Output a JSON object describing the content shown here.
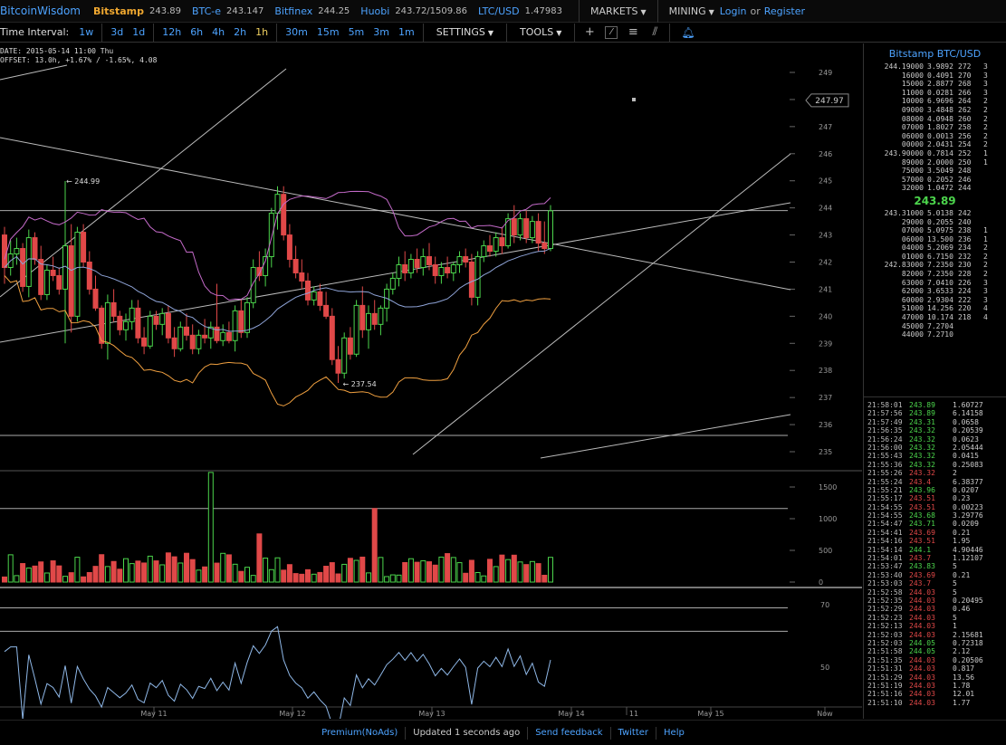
{
  "topbar": {
    "brand": "BitcoinWisdom",
    "exchanges": [
      {
        "name": "Bitstamp",
        "price": "243.89"
      },
      {
        "name": "BTC-e",
        "price": "243.147"
      },
      {
        "name": "Bitfinex",
        "price": "244.25"
      },
      {
        "name": "Huobi",
        "price": "243.72/1509.86"
      },
      {
        "name": "LTC/USD",
        "price": "1.47983"
      }
    ],
    "markets_label": "MARKETS",
    "mining_label": "MINING",
    "login_label": "Login",
    "or_label": "or",
    "register_label": "Register"
  },
  "toolbar": {
    "interval_label": "Time Interval:",
    "intervals": [
      "1w",
      "3d",
      "1d",
      "12h",
      "6h",
      "4h",
      "2h",
      "1h",
      "30m",
      "15m",
      "5m",
      "3m",
      "1m"
    ],
    "settings_label": "SETTINGS",
    "tools_label": "TOOLS"
  },
  "info": {
    "date_line": "DATE: 2015-05-14 11:00 Thu",
    "offset_line": "OFFSET: 13.0h, +1.67% / -1.65%, 4.08"
  },
  "chart_data": {
    "type": "candlestick",
    "price_ticks": [
      "249",
      "248",
      "247",
      "246",
      "245",
      "244",
      "243",
      "242",
      "241",
      "240",
      "239",
      "238",
      "237",
      "236",
      "235"
    ],
    "price_marker": "247.97",
    "high_label": "← 244.99",
    "low_label": "← 237.54",
    "volume_ticks": [
      "1500",
      "1000",
      "500",
      "0"
    ],
    "rsi_ticks": [
      "70",
      "50"
    ],
    "x_labels": [
      "May 11",
      "May 12",
      "May 13",
      "May 14",
      "11",
      "May 15",
      "Now"
    ],
    "candles": [
      [
        243.0,
        243.3,
        241.2,
        241.8
      ],
      [
        241.8,
        242.8,
        241.5,
        242.3
      ],
      [
        242.3,
        242.9,
        241.9,
        242.5
      ],
      [
        242.5,
        242.7,
        240.9,
        241.1
      ],
      [
        241.1,
        243.2,
        240.7,
        242.9
      ],
      [
        242.9,
        243.1,
        241.9,
        242.1
      ],
      [
        242.1,
        242.6,
        240.6,
        240.8
      ],
      [
        240.8,
        241.9,
        240.6,
        241.7
      ],
      [
        241.7,
        242.2,
        241.3,
        241.5
      ],
      [
        241.5,
        241.8,
        240.8,
        241.0
      ],
      [
        241.0,
        244.99,
        239.0,
        242.6
      ],
      [
        242.6,
        243.4,
        239.4,
        240.0
      ],
      [
        240.0,
        243.3,
        239.8,
        243.1
      ],
      [
        243.1,
        243.4,
        241.8,
        242.0
      ],
      [
        242.0,
        242.4,
        240.8,
        241.0
      ],
      [
        241.0,
        241.5,
        240.2,
        240.3
      ],
      [
        240.3,
        240.4,
        238.8,
        239.0
      ],
      [
        239.0,
        240.8,
        238.4,
        240.5
      ],
      [
        240.5,
        241.0,
        239.8,
        240.0
      ],
      [
        240.0,
        240.2,
        239.3,
        239.5
      ],
      [
        239.5,
        240.1,
        239.1,
        239.8
      ],
      [
        239.8,
        240.6,
        239.5,
        240.3
      ],
      [
        240.3,
        240.6,
        239.0,
        239.2
      ],
      [
        239.2,
        239.6,
        238.6,
        238.9
      ],
      [
        238.9,
        240.2,
        238.8,
        240.0
      ],
      [
        240.0,
        240.2,
        239.5,
        239.7
      ],
      [
        239.7,
        240.3,
        239.3,
        240.1
      ],
      [
        240.1,
        240.4,
        239.0,
        239.2
      ],
      [
        239.2,
        239.6,
        238.5,
        238.8
      ],
      [
        238.8,
        239.8,
        238.7,
        239.6
      ],
      [
        239.6,
        240.1,
        239.1,
        239.3
      ],
      [
        239.3,
        239.7,
        238.6,
        238.8
      ],
      [
        238.8,
        239.5,
        238.6,
        239.3
      ],
      [
        239.3,
        239.9,
        239.0,
        239.2
      ],
      [
        239.2,
        239.8,
        238.8,
        239.6
      ],
      [
        239.6,
        241.2,
        239.0,
        239.1
      ],
      [
        239.1,
        239.7,
        238.9,
        239.4
      ],
      [
        239.4,
        239.8,
        239.0,
        239.1
      ],
      [
        239.1,
        240.4,
        238.7,
        240.2
      ],
      [
        240.2,
        240.6,
        239.2,
        239.4
      ],
      [
        239.4,
        240.7,
        239.2,
        240.5
      ],
      [
        240.5,
        242.1,
        240.3,
        241.8
      ],
      [
        241.8,
        242.4,
        241.3,
        241.5
      ],
      [
        241.5,
        242.5,
        241.1,
        242.2
      ],
      [
        242.2,
        244.0,
        241.8,
        243.8
      ],
      [
        243.8,
        244.8,
        243.2,
        244.5
      ],
      [
        244.5,
        244.8,
        242.8,
        243.0
      ],
      [
        243.0,
        243.4,
        241.8,
        242.1
      ],
      [
        242.1,
        242.6,
        241.4,
        241.6
      ],
      [
        241.6,
        242.1,
        241.0,
        241.3
      ],
      [
        241.3,
        241.6,
        240.4,
        240.6
      ],
      [
        240.6,
        241.1,
        240.4,
        240.9
      ],
      [
        240.9,
        241.2,
        240.2,
        240.4
      ],
      [
        240.4,
        240.9,
        239.9,
        240.0
      ],
      [
        240.0,
        240.3,
        238.2,
        238.4
      ],
      [
        238.4,
        238.9,
        237.54,
        237.9
      ],
      [
        237.9,
        239.4,
        237.7,
        239.2
      ],
      [
        239.2,
        239.6,
        238.4,
        238.6
      ],
      [
        238.6,
        240.6,
        238.5,
        240.4
      ],
      [
        240.4,
        241.1,
        239.2,
        239.5
      ],
      [
        239.5,
        240.4,
        238.8,
        240.1
      ],
      [
        240.1,
        240.6,
        239.5,
        239.7
      ],
      [
        239.7,
        240.4,
        239.3,
        240.3
      ],
      [
        240.3,
        241.2,
        239.8,
        241.0
      ],
      [
        241.0,
        241.6,
        240.8,
        241.4
      ],
      [
        241.4,
        242.2,
        241.1,
        241.9
      ],
      [
        241.9,
        242.4,
        241.3,
        241.6
      ],
      [
        241.6,
        242.3,
        241.4,
        242.1
      ],
      [
        242.1,
        242.5,
        241.6,
        241.8
      ],
      [
        241.8,
        242.5,
        241.5,
        242.2
      ],
      [
        242.2,
        242.7,
        241.7,
        241.9
      ],
      [
        241.9,
        242.2,
        241.2,
        241.5
      ],
      [
        241.5,
        242.0,
        241.2,
        241.8
      ],
      [
        241.8,
        242.2,
        241.4,
        241.6
      ],
      [
        241.6,
        242.0,
        241.3,
        241.9
      ],
      [
        241.9,
        242.4,
        241.6,
        242.2
      ],
      [
        242.2,
        242.5,
        241.8,
        242.0
      ],
      [
        242.0,
        242.3,
        240.4,
        240.7
      ],
      [
        240.7,
        242.4,
        240.4,
        242.2
      ],
      [
        242.2,
        242.8,
        242.0,
        242.6
      ],
      [
        242.6,
        243.0,
        242.2,
        242.4
      ],
      [
        242.4,
        243.1,
        242.2,
        242.9
      ],
      [
        242.9,
        243.3,
        242.3,
        242.6
      ],
      [
        242.6,
        243.8,
        242.5,
        243.6
      ],
      [
        243.6,
        244.1,
        242.7,
        243.0
      ],
      [
        243.0,
        243.8,
        242.8,
        243.6
      ],
      [
        243.6,
        243.9,
        242.7,
        242.9
      ],
      [
        242.9,
        243.7,
        242.7,
        243.5
      ],
      [
        243.5,
        243.8,
        242.4,
        242.7
      ],
      [
        242.7,
        243.5,
        242.3,
        242.5
      ],
      [
        242.5,
        244.1,
        242.4,
        243.89
      ]
    ]
  },
  "panel": {
    "title": "Bitstamp BTC/USD",
    "last_price": "243.89",
    "asks": [
      [
        "244.19000",
        "3.9892",
        "272",
        "3"
      ],
      [
        "16000",
        "0.4091",
        "270",
        "3"
      ],
      [
        "15000",
        "2.8877",
        "268",
        "3"
      ],
      [
        "11000",
        "0.0281",
        "266",
        "3"
      ],
      [
        "10000",
        "6.9696",
        "264",
        "2"
      ],
      [
        "09000",
        "3.4848",
        "262",
        "2"
      ],
      [
        "08000",
        "4.0948",
        "260",
        "2"
      ],
      [
        "07000",
        "1.8027",
        "258",
        "2"
      ],
      [
        "06000",
        "0.0013",
        "256",
        "2"
      ],
      [
        "00000",
        "2.0431",
        "254",
        "2"
      ],
      [
        "243.90000",
        "0.7814",
        "252",
        "1"
      ],
      [
        "89000",
        "2.0000",
        "250",
        "1"
      ],
      [
        "75000",
        "3.5049",
        "248",
        ""
      ],
      [
        "57000",
        "0.2052",
        "246",
        ""
      ],
      [
        "32000",
        "1.0472",
        "244",
        ""
      ]
    ],
    "bids": [
      [
        "243.31000",
        "5.0138",
        "242",
        ""
      ],
      [
        "29000",
        "0.2055",
        "240",
        ""
      ],
      [
        "07000",
        "5.0975",
        "238",
        "1"
      ],
      [
        "06000",
        "13.500",
        "236",
        "1"
      ],
      [
        "04000",
        "5.2069",
        "234",
        "2"
      ],
      [
        "01000",
        "6.7150",
        "232",
        "2"
      ],
      [
        "242.83000",
        "7.2350",
        "230",
        "2"
      ],
      [
        "82000",
        "7.2350",
        "228",
        "2"
      ],
      [
        "63000",
        "7.0410",
        "226",
        "3"
      ],
      [
        "62000",
        "3.6533",
        "224",
        "3"
      ],
      [
        "60000",
        "2.9304",
        "222",
        "3"
      ],
      [
        "51000",
        "14.256",
        "220",
        "4"
      ],
      [
        "47000",
        "10.174",
        "218",
        "4"
      ],
      [
        "45000",
        "7.2704",
        "",
        ""
      ],
      [
        "44000",
        "7.2710",
        "",
        ""
      ]
    ],
    "trades": [
      [
        "21:58:01",
        "243.89",
        "up",
        "1.60727"
      ],
      [
        "21:57:56",
        "243.89",
        "up",
        "6.14158"
      ],
      [
        "21:57:49",
        "243.31",
        "up",
        "0.0658"
      ],
      [
        "21:56:35",
        "243.32",
        "up",
        "0.20539"
      ],
      [
        "21:56:24",
        "243.32",
        "up",
        "0.0623"
      ],
      [
        "21:56:00",
        "243.32",
        "up",
        "2.05444"
      ],
      [
        "21:55:43",
        "243.32",
        "up",
        "0.0415"
      ],
      [
        "21:55:36",
        "243.32",
        "up",
        "0.25083"
      ],
      [
        "21:55:26",
        "243.32",
        "dn",
        "2"
      ],
      [
        "21:55:24",
        "243.4",
        "dn",
        "6.38377"
      ],
      [
        "21:55:21",
        "243.96",
        "up",
        "0.0207"
      ],
      [
        "21:55:17",
        "243.51",
        "dn",
        "0.23"
      ],
      [
        "21:54:55",
        "243.51",
        "dn",
        "0.00223"
      ],
      [
        "21:54:55",
        "243.68",
        "up",
        "3.29776"
      ],
      [
        "21:54:47",
        "243.71",
        "up",
        "0.0209"
      ],
      [
        "21:54:41",
        "243.69",
        "dn",
        "0.21"
      ],
      [
        "21:54:16",
        "243.51",
        "dn",
        "1.95"
      ],
      [
        "21:54:14",
        "244.1",
        "up",
        "4.90446"
      ],
      [
        "21:54:01",
        "243.7",
        "dn",
        "1.12107"
      ],
      [
        "21:53:47",
        "243.83",
        "up",
        "5"
      ],
      [
        "21:53:40",
        "243.69",
        "dn",
        "0.21"
      ],
      [
        "21:53:03",
        "243.7",
        "dn",
        "5"
      ],
      [
        "21:52:58",
        "244.03",
        "dn",
        "5"
      ],
      [
        "21:52:35",
        "244.03",
        "dn",
        "0.20495"
      ],
      [
        "21:52:29",
        "244.03",
        "dn",
        "0.46"
      ],
      [
        "21:52:23",
        "244.03",
        "dn",
        "5"
      ],
      [
        "21:52:13",
        "244.03",
        "dn",
        "1"
      ],
      [
        "21:52:03",
        "244.03",
        "dn",
        "2.15681"
      ],
      [
        "21:52:03",
        "244.05",
        "up",
        "0.72318"
      ],
      [
        "21:51:58",
        "244.05",
        "up",
        "2.12"
      ],
      [
        "21:51:35",
        "244.03",
        "dn",
        "0.20506"
      ],
      [
        "21:51:31",
        "244.03",
        "dn",
        "0.817"
      ],
      [
        "21:51:29",
        "244.03",
        "dn",
        "13.56"
      ],
      [
        "21:51:19",
        "244.03",
        "dn",
        "1.78"
      ],
      [
        "21:51:16",
        "244.03",
        "dn",
        "12.01"
      ],
      [
        "21:51:10",
        "244.03",
        "dn",
        "1.77"
      ]
    ]
  },
  "footer": {
    "premium_label": "Premium(NoAds)",
    "updated_label": "Updated 1 seconds ago",
    "feedback_label": "Send feedback",
    "twitter_label": "Twitter",
    "help_label": "Help"
  },
  "colors": {
    "up": "#4cd54c",
    "down": "#e04848",
    "accent": "#4da3ff",
    "exchange": "#f0a830"
  }
}
